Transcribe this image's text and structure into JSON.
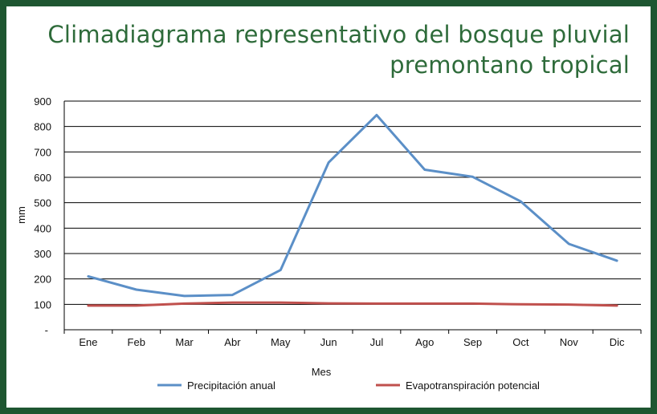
{
  "chart_data": {
    "type": "line",
    "title_lines": [
      "Climadiagrama representativo del bosque pluvial",
      "premontano tropical"
    ],
    "xlabel": "Mes",
    "ylabel": "mm",
    "categories": [
      "Ene",
      "Feb",
      "Mar",
      "Abr",
      "May",
      "Jun",
      "Jul",
      "Ago",
      "Sep",
      "Oct",
      "Nov",
      "Dic"
    ],
    "yticks": [
      900,
      800,
      700,
      600,
      500,
      400,
      300,
      200,
      100
    ],
    "ymin_label": "-",
    "ylim": [
      0,
      900
    ],
    "grid": true,
    "legend_position": "bottom",
    "series": [
      {
        "name": "Precipitación anual",
        "color": "#5b8fc7",
        "values": [
          210,
          158,
          133,
          137,
          235,
          658,
          845,
          630,
          602,
          505,
          338,
          272
        ]
      },
      {
        "name": "Evapotranspiración potencial",
        "color": "#c0504d",
        "values": [
          95,
          95,
          103,
          107,
          107,
          104,
          103,
          103,
          103,
          100,
          99,
          95
        ]
      }
    ]
  }
}
